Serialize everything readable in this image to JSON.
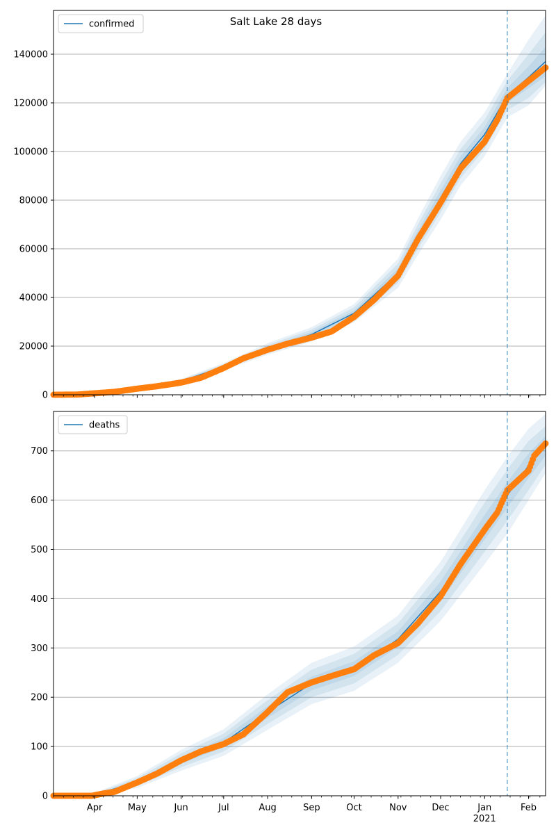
{
  "figure": {
    "title": "Salt Lake 28 days"
  },
  "colors": {
    "line": "#1f77b4",
    "band": "#1f77b4",
    "observed": "#ff7f0e",
    "grid": "#b0b0b0",
    "vline": "#1f77b4"
  },
  "chart_data": [
    {
      "type": "line",
      "title": "Salt Lake 28 days",
      "legend": {
        "label": "confirmed",
        "placement": "upper-left"
      },
      "ylim": [
        0,
        158000
      ],
      "yticks": [
        0,
        20000,
        40000,
        60000,
        80000,
        100000,
        120000,
        140000
      ],
      "ytick_labels": [
        "0",
        "20000",
        "40000",
        "60000",
        "80000",
        "100000",
        "120000",
        "140000"
      ],
      "x_range": [
        "2020-03-03",
        "2021-02-13"
      ],
      "xticks_major": [],
      "forecast_start": "2021-01-17",
      "grid": "y",
      "series": [
        {
          "name": "confirmed",
          "kind": "model",
          "points": [
            [
              "2020-03-03",
              0
            ],
            [
              "2020-04-01",
              600
            ],
            [
              "2020-05-01",
              2800
            ],
            [
              "2020-06-01",
              5600
            ],
            [
              "2020-07-01",
              11500
            ],
            [
              "2020-08-01",
              18800
            ],
            [
              "2020-09-01",
              24800
            ],
            [
              "2020-10-01",
              33500
            ],
            [
              "2020-11-01",
              50000
            ],
            [
              "2020-11-15",
              65000
            ],
            [
              "2020-12-01",
              81000
            ],
            [
              "2020-12-15",
              95000
            ],
            [
              "2021-01-01",
              107000
            ],
            [
              "2021-01-17",
              123000
            ],
            [
              "2021-02-01",
              130500
            ],
            [
              "2021-02-13",
              137000
            ]
          ],
          "bands": [
            {
              "level": "inner",
              "lower": [
                0,
                550,
                2650,
                5300,
                11000,
                18000,
                23800,
                32300,
                48000,
                62500,
                78000,
                92000,
                104000,
                120000,
                126000,
                131000
              ],
              "upper": [
                0,
                650,
                2950,
                5900,
                12000,
                19600,
                25800,
                34700,
                52000,
                67500,
                84000,
                98000,
                110000,
                126000,
                135000,
                143000
              ]
            },
            {
              "level": "middle",
              "lower": [
                0,
                500,
                2500,
                5000,
                10500,
                17200,
                22800,
                31000,
                46000,
                60000,
                75000,
                89000,
                101000,
                117000,
                122000,
                128500
              ],
              "upper": [
                0,
                700,
                3100,
                6200,
                12500,
                20400,
                26800,
                36000,
                54000,
                70000,
                87000,
                101000,
                113000,
                129000,
                140000,
                149000
              ]
            },
            {
              "level": "outer",
              "lower": [
                0,
                450,
                2350,
                4700,
                10000,
                16500,
                21800,
                29800,
                44000,
                57500,
                72000,
                86000,
                98000,
                114000,
                119000,
                127000
              ],
              "upper": [
                0,
                750,
                3250,
                6500,
                13000,
                21200,
                27800,
                37300,
                56000,
                72500,
                90000,
                104000,
                116000,
                132000,
                146000,
                156000
              ]
            }
          ]
        },
        {
          "kind": "observed",
          "points": [
            [
              "2020-03-03",
              0
            ],
            [
              "2020-03-20",
              100
            ],
            [
              "2020-04-01",
              600
            ],
            [
              "2020-04-15",
              1200
            ],
            [
              "2020-05-01",
              2500
            ],
            [
              "2020-05-15",
              3500
            ],
            [
              "2020-06-01",
              5000
            ],
            [
              "2020-06-15",
              7000
            ],
            [
              "2020-07-01",
              11000
            ],
            [
              "2020-07-15",
              15000
            ],
            [
              "2020-08-01",
              18500
            ],
            [
              "2020-08-15",
              21000
            ],
            [
              "2020-09-01",
              23500
            ],
            [
              "2020-09-15",
              26000
            ],
            [
              "2020-10-01",
              32000
            ],
            [
              "2020-10-15",
              39000
            ],
            [
              "2020-11-01",
              49000
            ],
            [
              "2020-11-15",
              64000
            ],
            [
              "2020-12-01",
              79000
            ],
            [
              "2020-12-15",
              93000
            ],
            [
              "2021-01-01",
              104000
            ],
            [
              "2021-01-10",
              113000
            ],
            [
              "2021-01-17",
              122000
            ],
            [
              "2021-02-01",
              129000
            ],
            [
              "2021-02-13",
              134500
            ]
          ]
        }
      ]
    },
    {
      "type": "line",
      "legend": {
        "label": "deaths",
        "placement": "upper-left"
      },
      "ylim": [
        0,
        780
      ],
      "yticks": [
        0,
        100,
        200,
        300,
        400,
        500,
        600,
        700
      ],
      "ytick_labels": [
        "0",
        "100",
        "200",
        "300",
        "400",
        "500",
        "600",
        "700"
      ],
      "x_range": [
        "2020-03-03",
        "2021-02-13"
      ],
      "xticks_major": [
        {
          "date": "2020-04-01",
          "label": "Apr"
        },
        {
          "date": "2020-05-01",
          "label": "May"
        },
        {
          "date": "2020-06-01",
          "label": "Jun"
        },
        {
          "date": "2020-07-01",
          "label": "Jul"
        },
        {
          "date": "2020-08-01",
          "label": "Aug"
        },
        {
          "date": "2020-09-01",
          "label": "Sep"
        },
        {
          "date": "2020-10-01",
          "label": "Oct"
        },
        {
          "date": "2020-11-01",
          "label": "Nov"
        },
        {
          "date": "2020-12-01",
          "label": "Dec"
        },
        {
          "date": "2021-01-01",
          "label": "Jan",
          "sublabel": "2021"
        },
        {
          "date": "2021-02-01",
          "label": "Feb"
        }
      ],
      "forecast_start": "2021-01-17",
      "grid": "y",
      "series": [
        {
          "name": "deaths",
          "kind": "model",
          "points": [
            [
              "2020-03-03",
              0
            ],
            [
              "2020-04-01",
              2
            ],
            [
              "2020-05-01",
              28
            ],
            [
              "2020-06-01",
              72
            ],
            [
              "2020-07-01",
              108
            ],
            [
              "2020-08-01",
              170
            ],
            [
              "2020-09-01",
              228
            ],
            [
              "2020-10-01",
              258
            ],
            [
              "2020-11-01",
              318
            ],
            [
              "2020-12-01",
              415
            ],
            [
              "2021-01-01",
              545
            ],
            [
              "2021-01-17",
              610
            ],
            [
              "2021-02-01",
              670
            ],
            [
              "2021-02-13",
              710
            ]
          ],
          "bands": [
            {
              "level": "inner",
              "lower": [
                0,
                1,
                24,
                65,
                99,
                158,
                214,
                243,
                302,
                395,
                520,
                584,
                645,
                690
              ],
              "upper": [
                0,
                3,
                32,
                79,
                117,
                182,
                242,
                273,
                334,
                435,
                570,
                636,
                695,
                730
              ]
            },
            {
              "level": "middle",
              "lower": [
                0,
                0,
                20,
                58,
                90,
                146,
                200,
                228,
                286,
                375,
                495,
                558,
                620,
                672
              ],
              "upper": [
                0,
                4,
                36,
                86,
                126,
                194,
                256,
                288,
                350,
                455,
                595,
                662,
                720,
                750
              ]
            },
            {
              "level": "outer",
              "lower": [
                0,
                0,
                16,
                51,
                81,
                134,
                186,
                213,
                270,
                355,
                470,
                532,
                600,
                655
              ],
              "upper": [
                0,
                6,
                40,
                93,
                135,
                206,
                270,
                303,
                366,
                475,
                620,
                688,
                745,
                775
              ]
            }
          ]
        },
        {
          "kind": "observed",
          "points": [
            [
              "2020-03-03",
              0
            ],
            [
              "2020-03-30",
              0
            ],
            [
              "2020-04-08",
              5
            ],
            [
              "2020-04-15",
              8
            ],
            [
              "2020-04-25",
              20
            ],
            [
              "2020-05-01",
              27
            ],
            [
              "2020-05-15",
              45
            ],
            [
              "2020-06-01",
              72
            ],
            [
              "2020-06-15",
              90
            ],
            [
              "2020-07-01",
              105
            ],
            [
              "2020-07-15",
              125
            ],
            [
              "2020-08-01",
              170
            ],
            [
              "2020-08-15",
              210
            ],
            [
              "2020-09-01",
              230
            ],
            [
              "2020-09-15",
              243
            ],
            [
              "2020-10-01",
              257
            ],
            [
              "2020-10-15",
              285
            ],
            [
              "2020-11-01",
              310
            ],
            [
              "2020-11-15",
              350
            ],
            [
              "2020-12-01",
              405
            ],
            [
              "2020-12-15",
              470
            ],
            [
              "2021-01-01",
              540
            ],
            [
              "2021-01-10",
              575
            ],
            [
              "2021-01-17",
              620
            ],
            [
              "2021-02-01",
              660
            ],
            [
              "2021-02-05",
              690
            ],
            [
              "2021-02-13",
              715
            ]
          ]
        }
      ]
    }
  ]
}
